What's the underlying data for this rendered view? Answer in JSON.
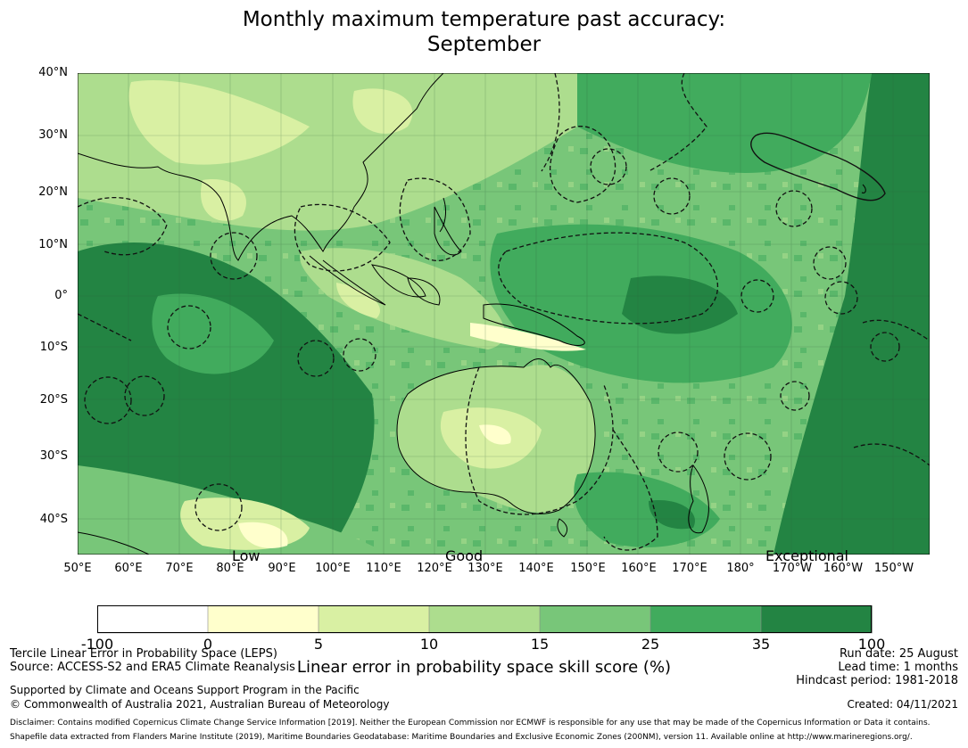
{
  "title": "Monthly maximum temperature past accuracy:",
  "subtitle": "September",
  "map": {
    "lat_labels": [
      "40°N",
      "30°N",
      "20°N",
      "10°N",
      "0°",
      "10°S",
      "20°S",
      "30°S",
      "40°S"
    ],
    "lon_labels": [
      "50°E",
      "60°E",
      "70°E",
      "80°E",
      "90°E",
      "100°E",
      "110°E",
      "120°E",
      "130°E",
      "140°E",
      "150°E",
      "160°E",
      "170°E",
      "180°",
      "170°W",
      "160°W",
      "150°W"
    ],
    "category_labels": [
      "Low",
      "Good",
      "Exceptional"
    ],
    "colors": [
      "#ffffff",
      "#ffffcc",
      "#d9f0a3",
      "#addd8e",
      "#78c679",
      "#41ab5d",
      "#238443"
    ]
  },
  "colorbar": {
    "ticks": [
      "-100",
      "0",
      "5",
      "10",
      "15",
      "25",
      "35",
      "100"
    ],
    "title": "Linear error in probability space skill score (%)"
  },
  "footer": {
    "method": "Tercile Linear Error in Probability Space (LEPS)",
    "source": "Source: ACCESS-S2 and ERA5 Climate Reanalysis",
    "support": "Supported by Climate and Oceans Support Program in the Pacific",
    "copyright": "© Commonwealth of Australia 2021, Australian Bureau of Meteorology",
    "run_date": "Run date: 25 August",
    "lead_time": "Lead time: 1 months",
    "hindcast": "Hindcast period: 1981-2018",
    "created": "Created: 04/11/2021",
    "disclaimer1": "Disclaimer: Contains modified Copernicus Climate Change Service Information [2019]. Neither the European Commission nor ECMWF is responsible for any use that may be made of the Copernicus Information or Data it contains.",
    "disclaimer2": "Shapefile data extracted from Flanders Marine Institute (2019), Maritime Boundaries Geodatabase: Maritime Boundaries and Exclusive Economic Zones (200NM), version 11. Available online at http://www.marineregions.org/."
  }
}
